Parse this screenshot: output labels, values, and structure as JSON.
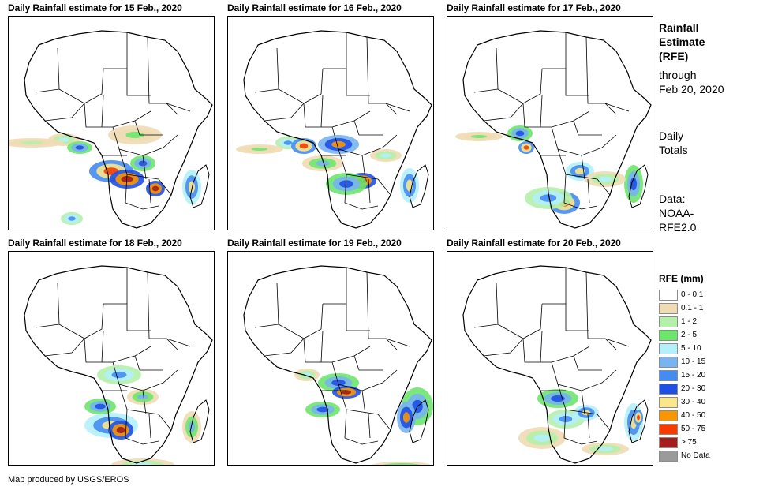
{
  "panels": [
    {
      "title": "Daily Rainfall estimate for 15 Feb., 2020",
      "date": "15 Feb."
    },
    {
      "title": "Daily Rainfall estimate for 16 Feb., 2020",
      "date": "16 Feb."
    },
    {
      "title": "Daily Rainfall estimate for 17 Feb., 2020",
      "date": "17 Feb."
    },
    {
      "title": "Daily Rainfall estimate for 18 Feb., 2020",
      "date": "18 Feb."
    },
    {
      "title": "Daily Rainfall estimate for 19 Feb., 2020",
      "date": "19 Feb."
    },
    {
      "title": "Daily Rainfall estimate for 20 Feb., 2020",
      "date": "20 Feb."
    }
  ],
  "side": {
    "title_lines": [
      "Rainfall",
      "Estimate",
      "(RFE)"
    ],
    "through_lines": [
      "through",
      "Feb 20, 2020"
    ],
    "daily_lines": [
      "Daily",
      "Totals"
    ],
    "data_lines": [
      "Data:",
      "NOAA-",
      "RFE2.0"
    ]
  },
  "legend": {
    "title": "RFE (mm)",
    "items": [
      {
        "label": "0 - 0.1",
        "color": "#ffffff"
      },
      {
        "label": "0.1 - 1",
        "color": "#f0dcb4"
      },
      {
        "label": "1 - 2",
        "color": "#b4f0aa"
      },
      {
        "label": "2 - 5",
        "color": "#6ee66e"
      },
      {
        "label": "5 - 10",
        "color": "#b4f0fa"
      },
      {
        "label": "10 - 15",
        "color": "#78b4f0"
      },
      {
        "label": "15 - 20",
        "color": "#468cf0"
      },
      {
        "label": "20 - 30",
        "color": "#1e50e6"
      },
      {
        "label": "30 - 40",
        "color": "#fae68c"
      },
      {
        "label": "40 - 50",
        "color": "#fa9600"
      },
      {
        "label": "50 - 75",
        "color": "#f53c00"
      },
      {
        "label": "> 75",
        "color": "#a01e1e"
      },
      {
        "label": "No Data",
        "color": "#9a9a9a"
      }
    ]
  },
  "credit": "Map produced by USGS/EROS"
}
